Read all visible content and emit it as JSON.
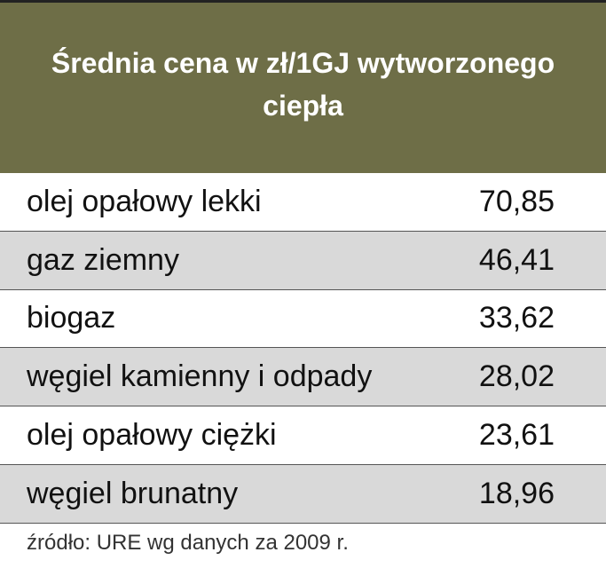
{
  "header": {
    "title": "Średnia cena w zł/1GJ wytworzonego ciepła"
  },
  "table": {
    "rows": [
      [
        "olej opałowy lekki",
        "70,85"
      ],
      [
        "gaz ziemny",
        "46,41"
      ],
      [
        "biogaz",
        "33,62"
      ],
      [
        "węgiel kamienny i odpady",
        "28,02"
      ],
      [
        "olej opałowy ciężki",
        "23,61"
      ],
      [
        "węgiel brunatny",
        "18,96"
      ]
    ]
  },
  "footer": {
    "source": "źródło: URE wg danych za 2009 r."
  }
}
